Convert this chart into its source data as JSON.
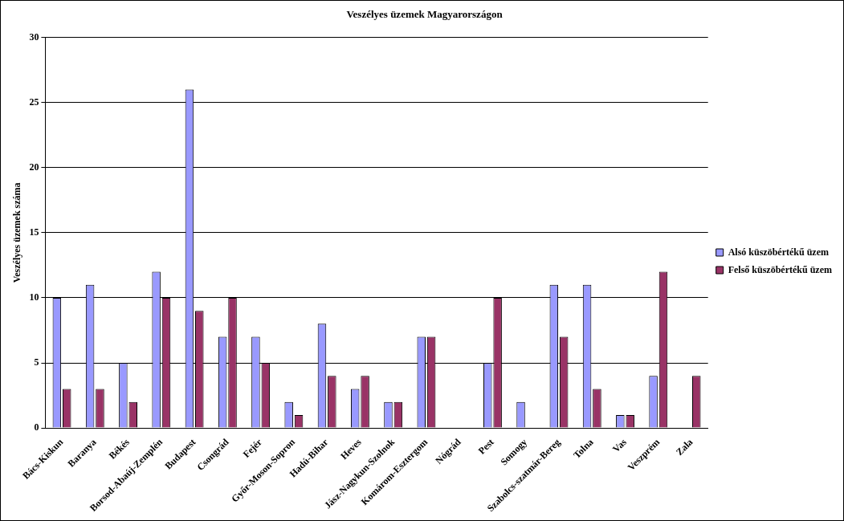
{
  "chart_data": {
    "type": "bar",
    "title": "Veszélyes üzemek Magyarországon",
    "ylabel": "Veszélyes üzemek száma",
    "categories": [
      "Bács-Kiskun",
      "Baranya",
      "Békés",
      "Borsod-Abaúj-Zemplén",
      "Budapest",
      "Csongrád",
      "Fejér",
      "Győr-Moson-Sopron",
      "Hadú-Bihar",
      "Heves",
      "Jász-Nagykun-Szolnok",
      "Komárom-Esztergom",
      "Nógrád",
      "Pest",
      "Somogy",
      "Szabolcs-szatmár-Bereg",
      "Tolna",
      "Vas",
      "Veszprém",
      "Zala"
    ],
    "series": [
      {
        "name": "Alsó küszöbértékű üzem",
        "color": "#9999ff",
        "values": [
          10,
          11,
          5,
          12,
          26,
          7,
          7,
          2,
          8,
          3,
          2,
          7,
          0,
          5,
          2,
          11,
          11,
          1,
          4,
          0
        ]
      },
      {
        "name": "Felső küszöbértékű üzem",
        "color": "#993366",
        "values": [
          3,
          3,
          2,
          10,
          9,
          10,
          5,
          1,
          4,
          4,
          2,
          7,
          0,
          10,
          0,
          7,
          3,
          1,
          12,
          4
        ]
      }
    ],
    "ylim": [
      0,
      30
    ],
    "yticks": [
      0,
      5,
      10,
      15,
      20,
      25,
      30
    ],
    "grid": "y",
    "legend": "right"
  }
}
